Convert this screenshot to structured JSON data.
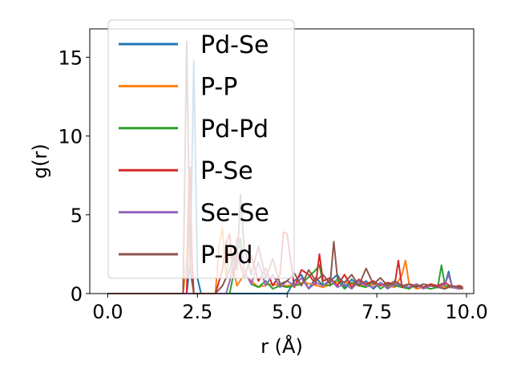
{
  "chart_data": {
    "type": "line",
    "xlabel": "r (Å)",
    "ylabel": "g(r)",
    "xlim": [
      -0.5,
      10.2
    ],
    "ylim": [
      0,
      16.8
    ],
    "xticks": [
      {
        "value": 0.0,
        "label": "0.0"
      },
      {
        "value": 2.5,
        "label": "2.5"
      },
      {
        "value": 5.0,
        "label": "5.0"
      },
      {
        "value": 7.5,
        "label": "7.5"
      },
      {
        "value": 10.0,
        "label": "10.0"
      }
    ],
    "yticks": [
      {
        "value": 0,
        "label": "0"
      },
      {
        "value": 5,
        "label": "5"
      },
      {
        "value": 10,
        "label": "10"
      },
      {
        "value": 15,
        "label": "15"
      }
    ],
    "grid": false,
    "legend": "upper-left",
    "series": [
      {
        "name": "Pd-Se",
        "color": "#1f77b4",
        "x": [
          0,
          2.1,
          2.2,
          2.3,
          2.4,
          2.5,
          2.6,
          3.0,
          3.5,
          4.0,
          4.5,
          5.0,
          5.2,
          5.4,
          5.6,
          5.8,
          6.0,
          6.2,
          6.4,
          6.6,
          6.8,
          7.0,
          7.2,
          7.4,
          7.6,
          7.8,
          8.0,
          8.2,
          8.4,
          8.6,
          8.8,
          9.0,
          9.2,
          9.4,
          9.5,
          9.6,
          9.8,
          9.9
        ],
        "y": [
          0,
          0,
          0,
          2.0,
          14.8,
          1.0,
          0,
          0,
          0,
          0,
          0,
          0,
          0.8,
          1.2,
          0.3,
          1.0,
          0.5,
          0.8,
          1.2,
          0.4,
          0.9,
          0.5,
          0.8,
          0.3,
          0.7,
          0.4,
          0.6,
          0.5,
          0.3,
          0.6,
          0.4,
          0.5,
          0.4,
          0.6,
          1.4,
          0.4,
          0.5,
          0.3
        ]
      },
      {
        "name": "P-P",
        "color": "#ff7f0e",
        "x": [
          0,
          2.1,
          2.2,
          2.25,
          2.3,
          2.4,
          2.6,
          3.0,
          3.1,
          3.2,
          3.3,
          3.4,
          3.6,
          3.8,
          4.0,
          4.2,
          4.5,
          5.0,
          5.5,
          6.0,
          6.5,
          7.0,
          7.5,
          8.0,
          8.2,
          8.3,
          8.4,
          8.6,
          9.0,
          9.5,
          9.9
        ],
        "y": [
          0,
          0,
          2.2,
          6.8,
          2.0,
          0,
          0,
          0,
          3.0,
          4.2,
          1.0,
          2.8,
          0.5,
          1.2,
          0.8,
          0.4,
          0.6,
          0.5,
          0.7,
          0.4,
          0.8,
          0.5,
          0.6,
          0.4,
          1.2,
          2.1,
          0.6,
          0.3,
          0.5,
          0.4,
          0.3
        ]
      },
      {
        "name": "Pd-Pd",
        "color": "#2ca02c",
        "x": [
          0,
          3.4,
          3.5,
          3.6,
          3.7,
          3.8,
          4.0,
          4.2,
          4.4,
          4.6,
          4.8,
          5.0,
          5.4,
          5.8,
          5.9,
          6.0,
          6.2,
          6.4,
          6.6,
          6.8,
          7.0,
          7.2,
          7.4,
          7.6,
          7.8,
          8.0,
          8.2,
          8.4,
          8.6,
          8.8,
          9.0,
          9.2,
          9.3,
          9.4,
          9.6,
          9.8,
          9.9
        ],
        "y": [
          0,
          0,
          1.2,
          2.8,
          3.5,
          1.5,
          0.6,
          0.4,
          0.8,
          0.3,
          0.5,
          0.4,
          0.6,
          1.5,
          1.8,
          0.6,
          0.5,
          0.9,
          0.3,
          0.7,
          0.5,
          0.4,
          0.8,
          0.3,
          0.6,
          0.5,
          0.4,
          0.3,
          0.6,
          0.4,
          0.3,
          0.4,
          1.8,
          0.5,
          0.4,
          0.3,
          0.4
        ]
      },
      {
        "name": "P-Se",
        "color": "#d62728",
        "x": [
          0,
          2.1,
          2.2,
          2.3,
          2.35,
          2.4,
          2.6,
          3.0,
          3.2,
          3.3,
          3.4,
          3.5,
          3.6,
          3.8,
          4.0,
          4.2,
          4.4,
          4.6,
          4.8,
          4.9,
          5.0,
          5.2,
          5.4,
          5.6,
          5.8,
          5.9,
          6.0,
          6.2,
          6.4,
          6.6,
          6.8,
          7.0,
          7.2,
          7.4,
          7.6,
          7.8,
          8.0,
          8.1,
          8.2,
          8.4,
          8.6,
          8.8,
          9.0,
          9.2,
          9.4,
          9.6,
          9.8,
          9.9
        ],
        "y": [
          0,
          0,
          0,
          8.0,
          2.0,
          0,
          0,
          0,
          1.5,
          3.2,
          3.8,
          1.0,
          2.6,
          1.0,
          2.4,
          0.8,
          1.6,
          0.5,
          1.2,
          3.9,
          3.8,
          0.4,
          1.5,
          1.2,
          0.6,
          2.5,
          0.8,
          1.0,
          0.5,
          1.2,
          0.4,
          0.9,
          0.6,
          0.8,
          0.5,
          0.7,
          0.6,
          2.1,
          0.4,
          0.6,
          0.5,
          0.4,
          0.6,
          0.5,
          0.7,
          0.4,
          0.5,
          0.4
        ]
      },
      {
        "name": "Se-Se",
        "color": "#9467bd",
        "x": [
          0,
          3.3,
          3.4,
          3.5,
          3.6,
          3.7,
          3.8,
          4.0,
          4.2,
          4.4,
          4.6,
          4.8,
          5.0,
          5.2,
          5.4,
          5.6,
          5.8,
          6.0,
          6.2,
          6.4,
          6.6,
          6.8,
          7.0,
          7.2,
          7.4,
          7.6,
          7.8,
          8.0,
          8.2,
          8.4,
          8.6,
          8.8,
          9.0,
          9.2,
          9.4,
          9.5,
          9.6,
          9.8,
          9.9
        ],
        "y": [
          0,
          0,
          0.8,
          2.0,
          3.5,
          2.8,
          1.5,
          0.6,
          2.0,
          0.5,
          1.2,
          0.4,
          0.8,
          0.5,
          1.0,
          0.3,
          0.7,
          0.5,
          0.9,
          0.4,
          0.6,
          0.3,
          0.8,
          0.5,
          0.4,
          0.7,
          0.3,
          0.6,
          0.5,
          0.4,
          0.6,
          0.3,
          0.5,
          0.4,
          0.6,
          1.2,
          0.4,
          0.3,
          0.4
        ]
      },
      {
        "name": "P-Pd",
        "color": "#8c564b",
        "x": [
          0,
          2.0,
          2.1,
          2.2,
          2.3,
          2.4,
          2.6,
          3.0,
          3.2,
          3.4,
          3.5,
          3.6,
          3.7,
          3.8,
          4.0,
          4.2,
          4.4,
          4.6,
          4.8,
          5.0,
          5.2,
          5.4,
          5.6,
          5.8,
          6.0,
          6.2,
          6.3,
          6.4,
          6.6,
          6.8,
          7.0,
          7.2,
          7.4,
          7.6,
          7.8,
          8.0,
          8.2,
          8.4,
          8.6,
          8.8,
          9.0,
          9.2,
          9.4,
          9.6,
          9.8,
          9.9
        ],
        "y": [
          0,
          0,
          0,
          16.0,
          1.5,
          0,
          0,
          0,
          0.5,
          1.5,
          2.5,
          1.5,
          6.3,
          3.0,
          1.2,
          3.0,
          1.0,
          2.2,
          0.6,
          0.8,
          1.3,
          0.5,
          1.5,
          0.8,
          1.2,
          0.6,
          3.3,
          1.0,
          0.7,
          1.2,
          0.5,
          1.6,
          0.6,
          1.0,
          0.5,
          0.8,
          0.5,
          0.6,
          0.4,
          0.6,
          0.5,
          0.4,
          0.3,
          0.5,
          0.4,
          0.3
        ]
      }
    ]
  }
}
